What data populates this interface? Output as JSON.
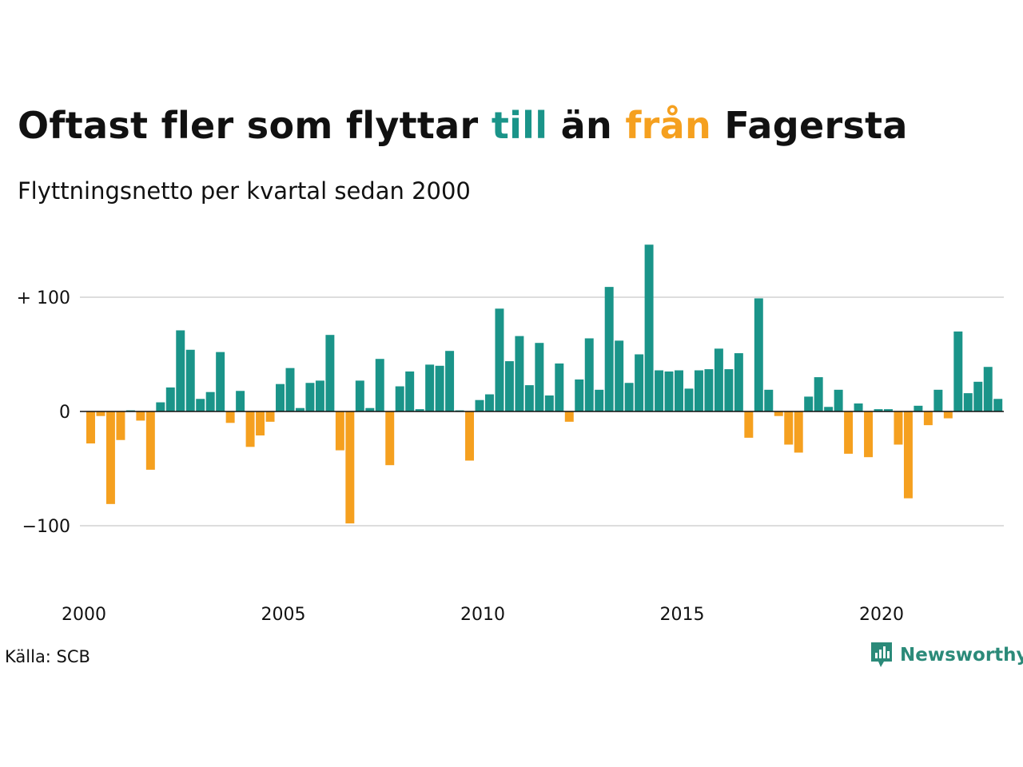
{
  "header": {
    "title_parts": [
      "Oftast fler som flyttar ",
      "till",
      " än ",
      "från",
      " Fagersta"
    ],
    "subtitle": "Flyttningsnetto per kvartal sedan 2000"
  },
  "footer": {
    "source": "Källa: SCB",
    "brand": "Newsworthy",
    "brand_icon": "chart-bubble-icon"
  },
  "colors": {
    "positive": "#1a9489",
    "negative": "#f5a01f",
    "text": "#111111",
    "grid": "#dddddd",
    "brand": "#2b8a79"
  },
  "chart_data": {
    "type": "bar",
    "title": "Oftast fler som flyttar till än från Fagersta",
    "subtitle": "Flyttningsnetto per kvartal sedan 2000",
    "xlabel": "",
    "ylabel": "",
    "x_start": 2000,
    "periods_per_year": 4,
    "x_ticks": [
      "2000",
      "2005",
      "2010",
      "2015",
      "2020"
    ],
    "y_ticks": [
      {
        "value": 100,
        "label": "+ 100"
      },
      {
        "value": 0,
        "label": "0"
      },
      {
        "value": -100,
        "label": "−100"
      }
    ],
    "ylim": [
      -160,
      160
    ],
    "grid": true,
    "values": [
      -28,
      -4,
      -81,
      -25,
      1,
      -8,
      -51,
      8,
      21,
      71,
      54,
      11,
      17,
      52,
      -10,
      18,
      -31,
      -21,
      -9,
      24,
      38,
      3,
      25,
      27,
      67,
      -34,
      -98,
      27,
      3,
      46,
      -47,
      22,
      35,
      2,
      41,
      40,
      53,
      1,
      -43,
      10,
      15,
      90,
      44,
      66,
      23,
      60,
      14,
      42,
      -9,
      28,
      64,
      19,
      109,
      62,
      25,
      50,
      146,
      36,
      35,
      36,
      20,
      36,
      37,
      55,
      37,
      51,
      -23,
      99,
      19,
      -4,
      -29,
      -36,
      13,
      30,
      4,
      19,
      -37,
      7,
      -40,
      2,
      2,
      -29,
      -76,
      5,
      -12,
      19,
      -6,
      70,
      16,
      26,
      39,
      11
    ]
  }
}
